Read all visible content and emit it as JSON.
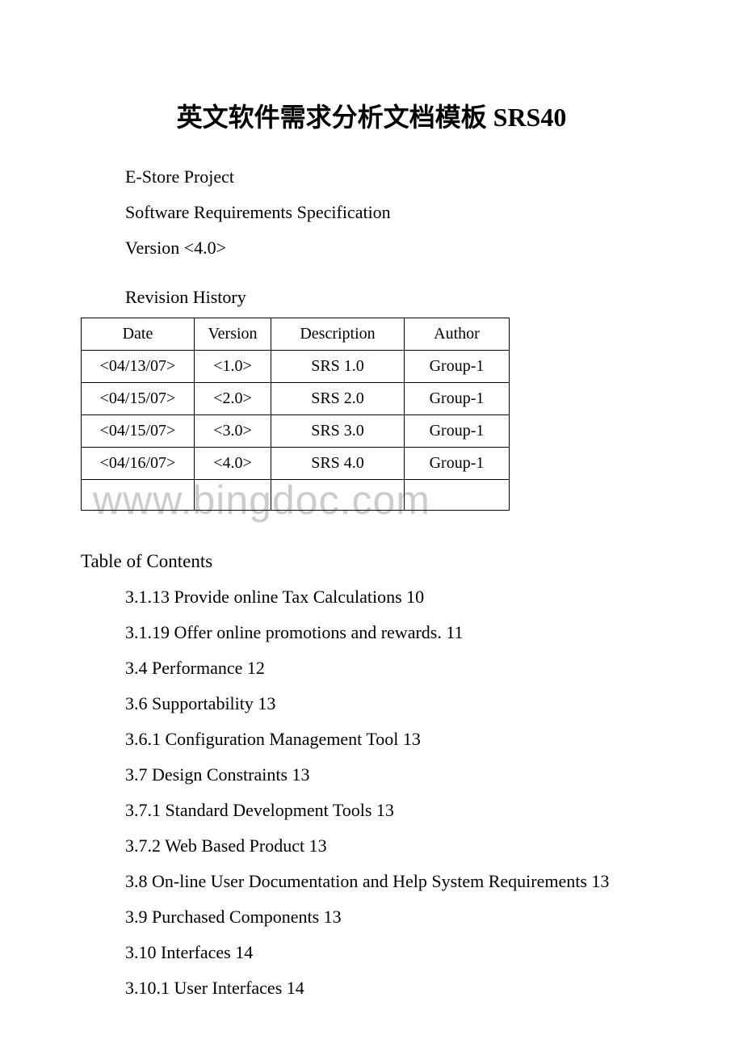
{
  "title": "英文软件需求分析文档模板 SRS40",
  "meta": {
    "project": "E-Store Project",
    "spec": "Software Requirements Specification",
    "version": "Version <4.0>"
  },
  "revision": {
    "heading": "Revision History",
    "columns": [
      "Date",
      "Version",
      "Description",
      "Author"
    ],
    "rows": [
      [
        "<04/13/07>",
        "<1.0>",
        "SRS 1.0",
        "Group-1"
      ],
      [
        "<04/15/07>",
        "<2.0>",
        "SRS 2.0",
        "Group-1"
      ],
      [
        "<04/15/07>",
        "<3.0>",
        "SRS 3.0",
        "Group-1"
      ],
      [
        "<04/16/07>",
        "<4.0>",
        "SRS 4.0",
        "Group-1"
      ]
    ]
  },
  "toc": {
    "heading": "Table of Contents",
    "items": [
      "3.1.13 Provide online Tax Calculations 10",
      "3.1.19 Offer online promotions and rewards. 11",
      "3.4 Performance 12",
      "3.6 Supportability 13",
      "3.6.1 Configuration Management Tool 13",
      "3.7 Design Constraints 13",
      "3.7.1 Standard Development Tools 13",
      "3.7.2 Web Based Product 13",
      "3.8 On-line User Documentation and Help System Requirements 13",
      "3.9 Purchased Components 13",
      "3.10 Interfaces 14",
      "3.10.1 User Interfaces 14"
    ]
  },
  "watermark": "www.bingdoc.com",
  "colors": {
    "text": "#000000",
    "background": "#ffffff",
    "watermark": "#cccccc",
    "border": "#000000"
  }
}
